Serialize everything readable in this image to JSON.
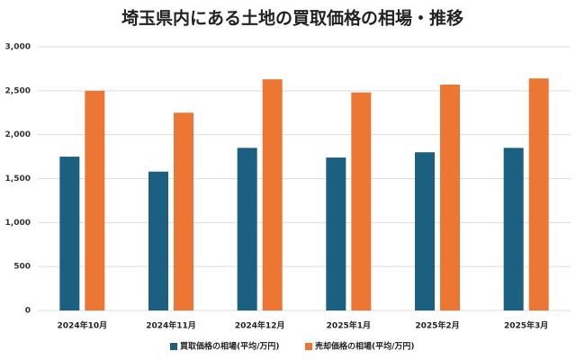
{
  "chart_data": {
    "type": "bar",
    "title": "埼玉県内にある土地の買取価格の相場・推移",
    "categories": [
      "2024年10月",
      "2024年11月",
      "2024年12月",
      "2025年1月",
      "2025年2月",
      "2025年3月"
    ],
    "series": [
      {
        "name": "買取価格の相場(平均/万円)",
        "color": "#1b5f81",
        "values": [
          1750,
          1580,
          1850,
          1740,
          1800,
          1850
        ]
      },
      {
        "name": "売却価格の相場(平均/万円)",
        "color": "#ec7634",
        "values": [
          2500,
          2250,
          2630,
          2480,
          2570,
          2640
        ]
      }
    ],
    "ylim": [
      0,
      3000
    ],
    "yticks": [
      0,
      500,
      {
        "value": 1000,
        "label": "1,000"
      },
      {
        "value": 1500,
        "label": "1,500"
      },
      {
        "value": 2000,
        "label": "2,000"
      },
      {
        "value": 2500,
        "label": "2,500"
      },
      {
        "value": 3000,
        "label": "3,000"
      }
    ],
    "grid": true,
    "legend": "bottom"
  }
}
